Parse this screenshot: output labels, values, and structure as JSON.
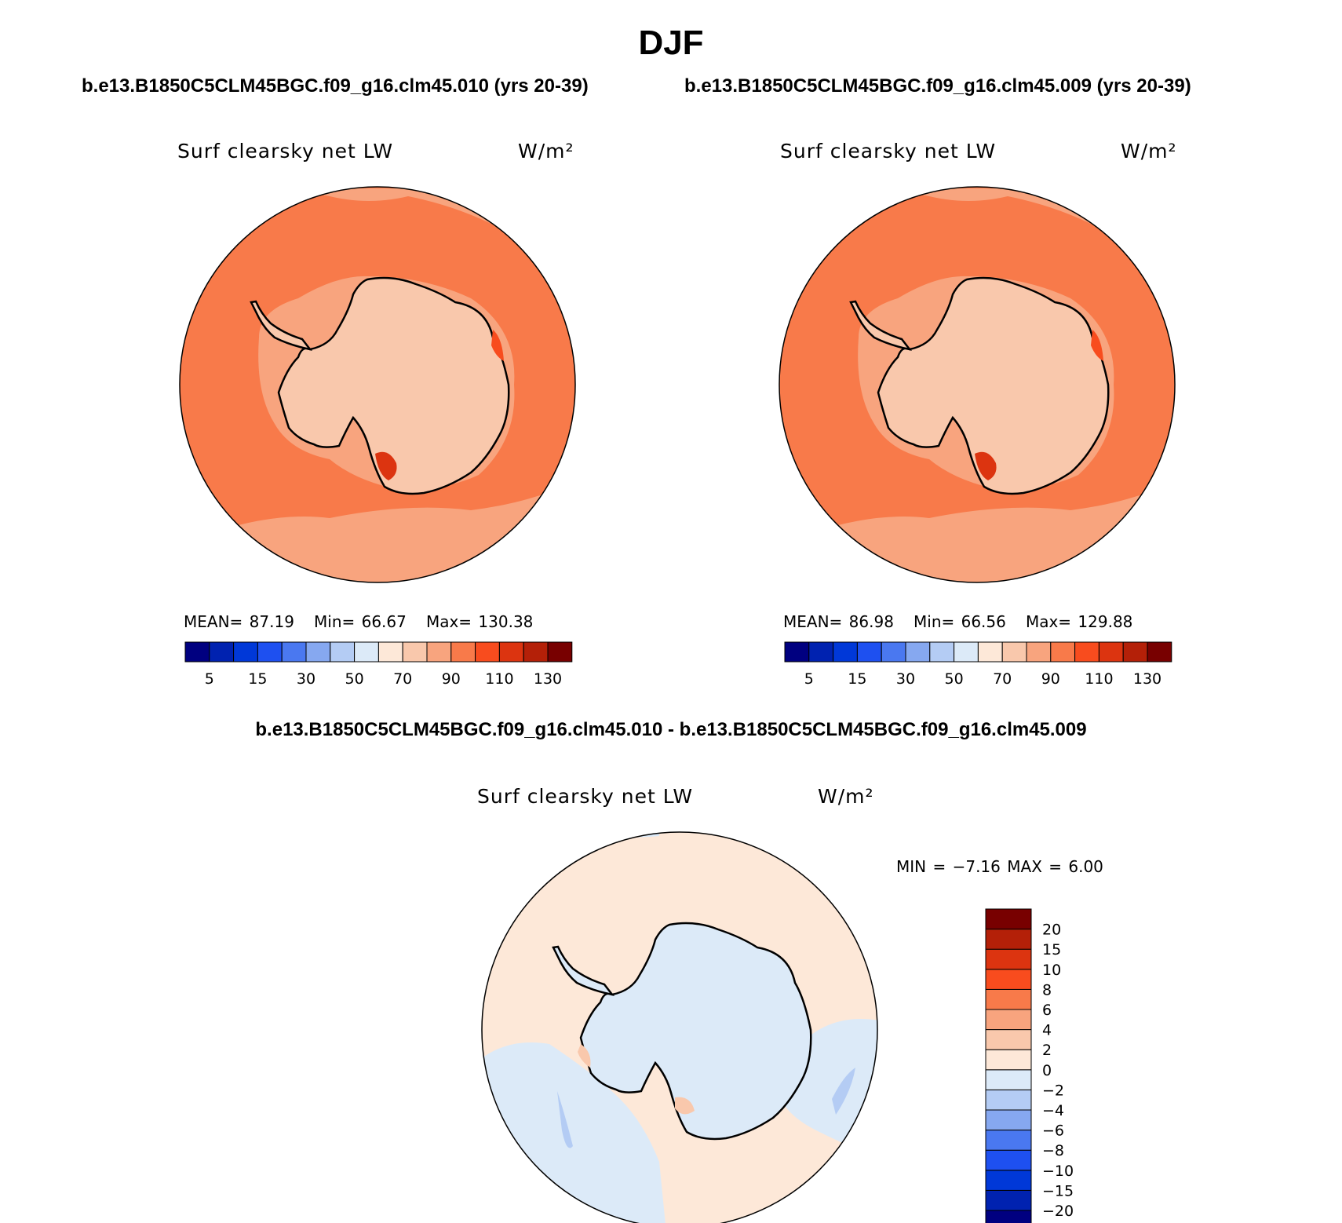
{
  "title": "DJF",
  "case_left": "b.e13.B1850C5CLM45BGC.f09_g16.clm45.010 (yrs 20-39)",
  "case_right": "b.e13.B1850C5CLM45BGC.f09_g16.clm45.009 (yrs 20-39)",
  "diff_title": "b.e13.B1850C5CLM45BGC.f09_g16.clm45.010 - b.e13.B1850C5CLM45BGC.f09_g16.clm45.009",
  "panel_left": {
    "variable": "Surf clearsky net LW",
    "units": "W/m²",
    "mean_label": "MEAN=",
    "mean": "87.19",
    "min_label": "Min=",
    "min": "66.67",
    "max_label": "Max=",
    "max": "130.38"
  },
  "panel_right": {
    "variable": "Surf clearsky net LW",
    "units": "W/m²",
    "mean_label": "MEAN=",
    "mean": "86.98",
    "min_label": "Min=",
    "min": "66.56",
    "max_label": "Max=",
    "max": "129.88"
  },
  "panel_diff": {
    "variable": "Surf clearsky net LW",
    "units": "W/m²",
    "min_label": "MIN =",
    "min": "−7.16",
    "max_label": "MAX =",
    "max": "6.00"
  },
  "colors": {
    "abs_scale": [
      "#000080",
      "#0022b0",
      "#0038d8",
      "#1e50f0",
      "#4a78f0",
      "#86a8f0",
      "#b4ccf4",
      "#dceaf8",
      "#fde8d8",
      "#f9c8ac",
      "#f8a47e",
      "#f87a4a",
      "#f84c1e",
      "#dc3410",
      "#b42008",
      "#780000"
    ],
    "diff_scale": [
      "#000080",
      "#0022b0",
      "#0038d8",
      "#1e50f0",
      "#4a78f0",
      "#86a8f0",
      "#b4ccf4",
      "#dceaf8",
      "#fde8d8",
      "#f9c8ac",
      "#f8a47e",
      "#f87a4a",
      "#f84c1e",
      "#dc3410",
      "#b42008",
      "#780000"
    ]
  },
  "chart_data": [
    {
      "type": "heatmap",
      "title": "Surf clearsky net LW",
      "units": "W/m²",
      "projection": "south polar stereographic",
      "levels": [
        5,
        10,
        15,
        20,
        30,
        40,
        50,
        60,
        70,
        80,
        90,
        100,
        110,
        120,
        130
      ],
      "colorbar_tick_labels": [
        "5",
        "15",
        "30",
        "50",
        "70",
        "90",
        "110",
        "130"
      ],
      "mean": 87.19,
      "min": 66.67,
      "max": 130.38
    },
    {
      "type": "heatmap",
      "title": "Surf clearsky net LW",
      "units": "W/m²",
      "projection": "south polar stereographic",
      "levels": [
        5,
        10,
        15,
        20,
        30,
        40,
        50,
        60,
        70,
        80,
        90,
        100,
        110,
        120,
        130
      ],
      "colorbar_tick_labels": [
        "5",
        "15",
        "30",
        "50",
        "70",
        "90",
        "110",
        "130"
      ],
      "mean": 86.98,
      "min": 66.56,
      "max": 129.88
    },
    {
      "type": "heatmap",
      "title": "Surf clearsky net LW",
      "units": "W/m²",
      "projection": "south polar stereographic",
      "levels": [
        -20,
        -15,
        -10,
        -8,
        -6,
        -4,
        -2,
        0,
        2,
        4,
        6,
        8,
        10,
        15,
        20
      ],
      "colorbar_tick_labels": [
        "20",
        "15",
        "10",
        "8",
        "6",
        "4",
        "2",
        "0",
        "−2",
        "−4",
        "−6",
        "−8",
        "−10",
        "−15",
        "−20"
      ],
      "min": -7.16,
      "max": 6.0
    }
  ]
}
